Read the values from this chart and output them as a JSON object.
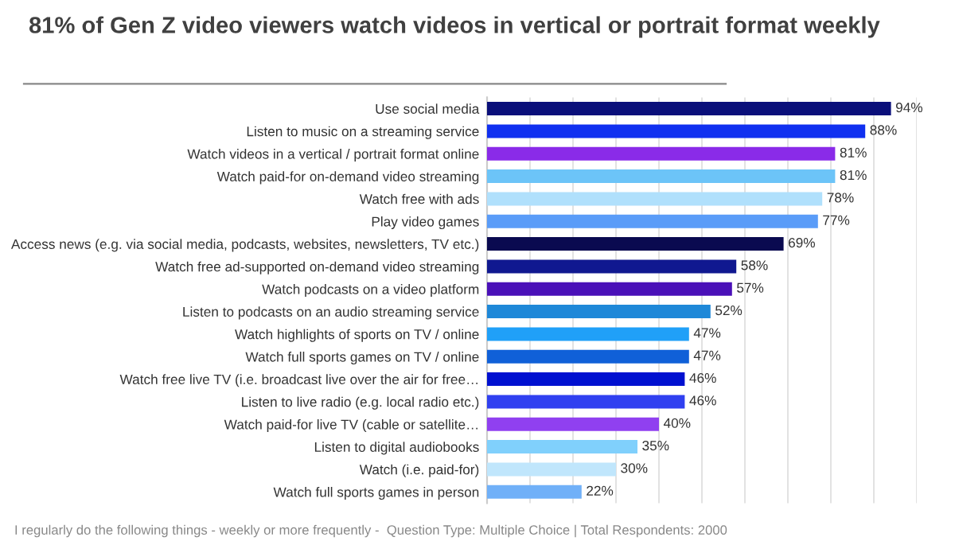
{
  "chart_data": {
    "type": "bar",
    "orientation": "horizontal",
    "title": "81% of Gen Z video viewers watch videos in vertical or portrait format weekly",
    "categories": [
      "Use social media",
      "Listen to music on a streaming service",
      "Watch videos in a vertical / portrait format online",
      "Watch paid-for on-demand video streaming",
      "Watch free with ads",
      "Play video games",
      "Access news (e.g. via social media, podcasts, websites, newsletters, TV etc.)",
      "Watch free ad-supported on-demand video streaming",
      "Watch podcasts on a video platform",
      "Listen to podcasts on an audio streaming service",
      "Watch highlights of sports on TV / online",
      "Watch full sports games on TV / online",
      "Watch free live TV (i.e. broadcast live over the air for free…",
      "Listen to live radio (e.g. local radio etc.)",
      "Watch paid-for live TV (cable or satellite…",
      "Listen to digital audiobooks",
      "Watch (i.e. paid-for)",
      "Watch full sports games in person"
    ],
    "values": [
      94,
      88,
      81,
      81,
      78,
      77,
      69,
      58,
      57,
      52,
      47,
      47,
      46,
      46,
      40,
      35,
      30,
      22
    ],
    "colors": [
      "#0a0f7a",
      "#1030f0",
      "#8a2be8",
      "#6cc4f8",
      "#b0e0fc",
      "#5a9cf8",
      "#0a0a50",
      "#101890",
      "#4a10b8",
      "#1e88d8",
      "#20a0f8",
      "#1060d8",
      "#0010d0",
      "#3040f0",
      "#9040f0",
      "#80d0fc",
      "#c0e6fc",
      "#70b0f8"
    ],
    "value_labels": [
      "94%",
      "88%",
      "81%",
      "81%",
      "78%",
      "77%",
      "69%",
      "58%",
      "57%",
      "52%",
      "47%",
      "47%",
      "46%",
      "46%",
      "40%",
      "35%",
      "30%",
      "22%"
    ],
    "xlim": [
      0,
      100
    ],
    "xticks": [
      {
        "value": 0,
        "label": null
      },
      {
        "value": 10,
        "label": null
      },
      {
        "value": 20,
        "label": null
      },
      {
        "value": 30,
        "label": null
      },
      {
        "value": 40,
        "label": null
      },
      {
        "value": 50,
        "label": null
      },
      {
        "value": 60,
        "label": null
      },
      {
        "value": 70,
        "label": null
      },
      {
        "value": 80,
        "label": null
      },
      {
        "value": 90,
        "label": null
      },
      {
        "value": 100,
        "label": null
      }
    ],
    "grid": "x",
    "tick_labels": "y",
    "annotations": [
      "I regularly do the following things - weekly or more frequently -  Question Type: Multiple Choice | Total Respondents: 2000"
    ]
  }
}
